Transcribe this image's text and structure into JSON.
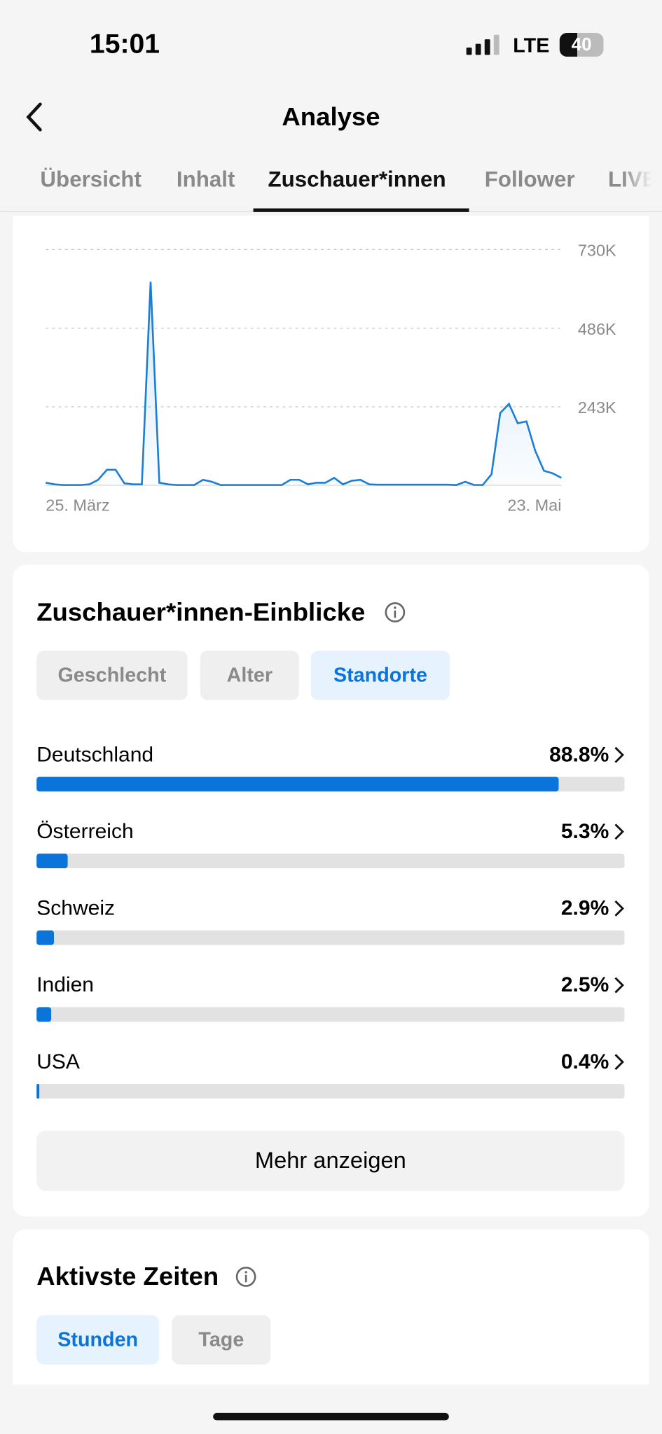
{
  "status_bar": {
    "time": "15:01",
    "network": "LTE",
    "battery": "40"
  },
  "header": {
    "title": "Analyse"
  },
  "tabs": [
    "Übersicht",
    "Inhalt",
    "Zuschauer*innen",
    "Follower",
    "LIVE"
  ],
  "active_tab": 2,
  "chart_data": {
    "type": "line",
    "categories": [
      "25. März",
      null,
      null,
      null,
      null,
      null,
      null,
      null,
      null,
      null,
      null,
      null,
      null,
      null,
      null,
      null,
      null,
      null,
      null,
      null,
      null,
      null,
      null,
      null,
      null,
      null,
      null,
      null,
      null,
      null,
      null,
      null,
      null,
      null,
      null,
      null,
      null,
      null,
      null,
      null,
      null,
      null,
      null,
      null,
      null,
      null,
      null,
      null,
      null,
      null,
      null,
      null,
      null,
      null,
      null,
      null,
      null,
      null,
      null,
      "23. Mai"
    ],
    "series": [
      {
        "name": null,
        "color": "#1a7fd4",
        "values": [
          8000,
          3000,
          1000,
          1000,
          1000,
          3000,
          17000,
          48000,
          48000,
          6000,
          3000,
          3000,
          630000,
          8000,
          3000,
          1000,
          1000,
          1000,
          17000,
          11000,
          1000,
          1000,
          1000,
          1000,
          1000,
          1000,
          1000,
          1000,
          17000,
          17000,
          3000,
          8000,
          8000,
          23000,
          3000,
          14000,
          17000,
          3000,
          2000,
          2000,
          2000,
          2000,
          2000,
          2000,
          2000,
          2000,
          2000,
          1000,
          11000,
          1000,
          1000,
          34000,
          224000,
          252000,
          192000,
          198000,
          107000,
          45000,
          37000,
          23000
        ]
      }
    ],
    "ylim": [
      0,
      730000
    ],
    "yticks": [
      {
        "value": 243000,
        "label": "243K"
      },
      {
        "value": 486000,
        "label": "486K"
      },
      {
        "value": 730000,
        "label": "730K"
      }
    ],
    "grid": true
  },
  "insights": {
    "title": "Zuschauer*innen-Einblicke",
    "filters": [
      "Geschlecht",
      "Alter",
      "Standorte"
    ],
    "active_filter": 2,
    "locations": {
      "categories": [
        "Deutschland",
        "Österreich",
        "Schweiz",
        "Indien",
        "USA"
      ],
      "values": [
        88.8,
        5.3,
        2.9,
        2.5,
        0.4
      ],
      "value_labels": [
        "88.8%",
        "5.3%",
        "2.9%",
        "2.5%",
        "0.4%"
      ],
      "xlim": [
        0,
        100
      ],
      "color": "#0a74da"
    },
    "more_button": "Mehr anzeigen"
  },
  "active_times": {
    "title": "Aktivste Zeiten",
    "filters": [
      "Stunden",
      "Tage"
    ],
    "active_filter": 0
  }
}
